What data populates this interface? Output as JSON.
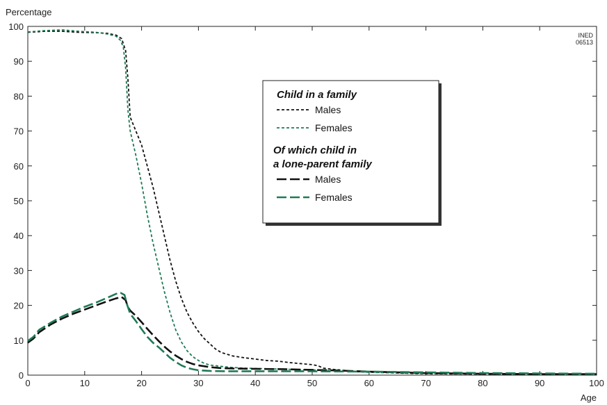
{
  "chart_data": {
    "type": "line",
    "ylabel": "Percentage",
    "xlabel": "Age",
    "xlim": [
      0,
      100
    ],
    "ylim": [
      0,
      100
    ],
    "x_ticks": [
      0,
      10,
      20,
      30,
      40,
      50,
      60,
      70,
      80,
      90,
      100
    ],
    "y_ticks": [
      0,
      10,
      20,
      30,
      40,
      50,
      60,
      70,
      80,
      90,
      100
    ],
    "corner_code": [
      "INED",
      "06513"
    ],
    "legend": {
      "placement": "upper-middle-right",
      "groups": [
        {
          "title": [
            "Child in a family"
          ],
          "items": [
            {
              "label": "Males",
              "series": 0
            },
            {
              "label": "Females",
              "series": 1
            }
          ]
        },
        {
          "title": [
            "Of which child in",
            "a lone-parent family"
          ],
          "items": [
            {
              "label": "Males",
              "series": 2
            },
            {
              "label": "Females",
              "series": 3
            }
          ]
        }
      ]
    },
    "series": [
      {
        "name": "Males",
        "group": "Child in a family",
        "color": "#111111",
        "dash": "short-dash",
        "points": [
          [
            0,
            98.3
          ],
          [
            3,
            98.6
          ],
          [
            6,
            98.6
          ],
          [
            9,
            98.3
          ],
          [
            12,
            98.2
          ],
          [
            14,
            98
          ],
          [
            15.5,
            97.5
          ],
          [
            16.5,
            96.5
          ],
          [
            17.2,
            93
          ],
          [
            17.6,
            85
          ],
          [
            18,
            74
          ],
          [
            19,
            70
          ],
          [
            20,
            66
          ],
          [
            21,
            60
          ],
          [
            22,
            54
          ],
          [
            23,
            47
          ],
          [
            24,
            40
          ],
          [
            25,
            33
          ],
          [
            26,
            27
          ],
          [
            27,
            22
          ],
          [
            28,
            18
          ],
          [
            29,
            15
          ],
          [
            30,
            12.5
          ],
          [
            31,
            10.5
          ],
          [
            32,
            9
          ],
          [
            33,
            7.5
          ],
          [
            34,
            6.5
          ],
          [
            35,
            6
          ],
          [
            36,
            5.5
          ],
          [
            38,
            5
          ],
          [
            40,
            4.6
          ],
          [
            42,
            4.2
          ],
          [
            44,
            4
          ],
          [
            46,
            3.6
          ],
          [
            48,
            3.3
          ],
          [
            50,
            3
          ],
          [
            51,
            2.7
          ],
          [
            52,
            2
          ],
          [
            54,
            1.6
          ],
          [
            56,
            1.3
          ],
          [
            58,
            1
          ],
          [
            60,
            0.9
          ],
          [
            65,
            0.6
          ],
          [
            70,
            0.4
          ],
          [
            80,
            0.3
          ],
          [
            90,
            0.3
          ],
          [
            100,
            0.3
          ]
        ]
      },
      {
        "name": "Females",
        "group": "Child in a family",
        "color": "#1e7a55",
        "dash": "short-dash",
        "points": [
          [
            0,
            98.4
          ],
          [
            3,
            98.8
          ],
          [
            6,
            99
          ],
          [
            9,
            98.6
          ],
          [
            12,
            98.3
          ],
          [
            14,
            97.8
          ],
          [
            15.5,
            97.2
          ],
          [
            16.3,
            96
          ],
          [
            16.8,
            94
          ],
          [
            17.2,
            88
          ],
          [
            17.6,
            76
          ],
          [
            18,
            70
          ],
          [
            19,
            63
          ],
          [
            20,
            55
          ],
          [
            21,
            46
          ],
          [
            22,
            38
          ],
          [
            23,
            31
          ],
          [
            24,
            24
          ],
          [
            25,
            18
          ],
          [
            26,
            13
          ],
          [
            27,
            9.5
          ],
          [
            28,
            7
          ],
          [
            29,
            5.3
          ],
          [
            30,
            4.2
          ],
          [
            31,
            3.4
          ],
          [
            32,
            2.9
          ],
          [
            34,
            2.5
          ],
          [
            36,
            2.2
          ],
          [
            38,
            2
          ],
          [
            40,
            1.9
          ],
          [
            45,
            1.7
          ],
          [
            50,
            1.5
          ],
          [
            55,
            1.2
          ],
          [
            60,
            0.8
          ],
          [
            70,
            0.5
          ],
          [
            80,
            0.4
          ],
          [
            90,
            0.3
          ],
          [
            100,
            0.3
          ]
        ]
      },
      {
        "name": "Males",
        "group": "Of which child in a lone-parent family",
        "color": "#111111",
        "dash": "long-dash",
        "points": [
          [
            0,
            9.3
          ],
          [
            1,
            10.5
          ],
          [
            2,
            12.3
          ],
          [
            4,
            14.5
          ],
          [
            6,
            16.2
          ],
          [
            8,
            17.6
          ],
          [
            10,
            18.8
          ],
          [
            12,
            20
          ],
          [
            14,
            21.2
          ],
          [
            15.5,
            22
          ],
          [
            16.5,
            22.4
          ],
          [
            17.2,
            21.5
          ],
          [
            17.6,
            19.5
          ],
          [
            18,
            18.5
          ],
          [
            19,
            17
          ],
          [
            20,
            15.2
          ],
          [
            21,
            13.3
          ],
          [
            22,
            11.5
          ],
          [
            23,
            9.8
          ],
          [
            24,
            8.2
          ],
          [
            25,
            6.8
          ],
          [
            26,
            5.6
          ],
          [
            27,
            4.6
          ],
          [
            28,
            3.8
          ],
          [
            29,
            3.2
          ],
          [
            30,
            2.8
          ],
          [
            32,
            2.3
          ],
          [
            34,
            2
          ],
          [
            36,
            1.9
          ],
          [
            40,
            1.8
          ],
          [
            45,
            1.7
          ],
          [
            50,
            1.5
          ],
          [
            55,
            1.3
          ],
          [
            60,
            1
          ],
          [
            70,
            0.6
          ],
          [
            80,
            0.4
          ],
          [
            90,
            0.3
          ],
          [
            100,
            0.3
          ]
        ]
      },
      {
        "name": "Females",
        "group": "Of which child in a lone-parent family",
        "color": "#1e7a55",
        "dash": "long-dash",
        "points": [
          [
            0,
            9.8
          ],
          [
            1,
            11
          ],
          [
            2,
            13
          ],
          [
            4,
            15
          ],
          [
            6,
            16.8
          ],
          [
            8,
            18.2
          ],
          [
            10,
            19.6
          ],
          [
            12,
            20.8
          ],
          [
            14,
            22.2
          ],
          [
            15.5,
            23.3
          ],
          [
            16.3,
            23.6
          ],
          [
            17,
            23
          ],
          [
            17.5,
            20
          ],
          [
            18,
            17.6
          ],
          [
            19,
            15.5
          ],
          [
            20,
            13.2
          ],
          [
            21,
            11
          ],
          [
            22,
            9.3
          ],
          [
            23,
            8
          ],
          [
            24,
            6.5
          ],
          [
            25,
            5
          ],
          [
            26,
            3.8
          ],
          [
            27,
            2.8
          ],
          [
            28,
            2.1
          ],
          [
            29,
            1.7
          ],
          [
            30,
            1.4
          ],
          [
            32,
            1.2
          ],
          [
            35,
            1.1
          ],
          [
            40,
            1.1
          ],
          [
            50,
            1.1
          ],
          [
            60,
            1
          ],
          [
            70,
            0.8
          ],
          [
            80,
            0.6
          ],
          [
            90,
            0.5
          ],
          [
            100,
            0.4
          ]
        ]
      }
    ]
  }
}
